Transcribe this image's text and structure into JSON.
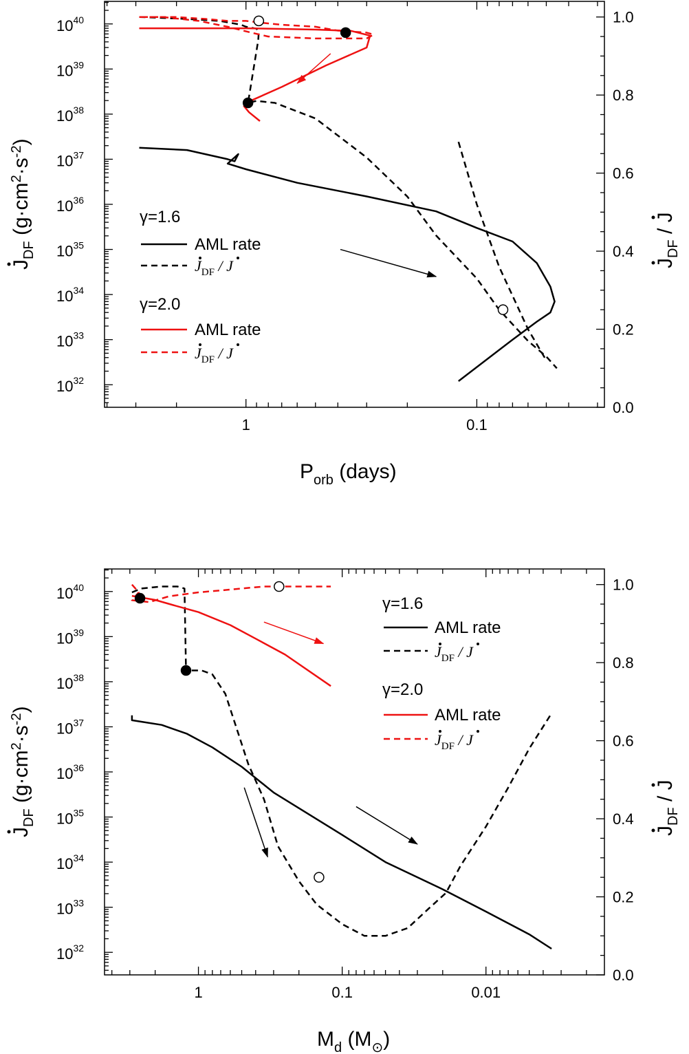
{
  "colors": {
    "gamma16": "#000000",
    "gamma20": "#ee1111"
  },
  "chart_data": [
    {
      "type": "line",
      "id": "top",
      "xlabel_main": "P",
      "xlabel_sub": "orb",
      "xlabel_tail": " (days)",
      "ylabel_left_main": "J",
      "ylabel_left_sub": "DF",
      "ylabel_left_tail": " (g·cm",
      "ylabel_right_main": "J",
      "ylabel_right_sub": "DF",
      "ylabel_right_tail": " / J",
      "x_scale": "log",
      "x_reversed": true,
      "xlim": [
        4.1,
        0.028
      ],
      "y_left_scale": "log",
      "y_left_lim": [
        3.162e+31,
        3.162e+40
      ],
      "y_right_lim": [
        0.0,
        1.04
      ],
      "x_tick_labels": [
        {
          "v": 1,
          "label": "1"
        },
        {
          "v": 0.1,
          "label": "0.1"
        }
      ],
      "y_left_tick_labels": [
        {
          "v": 1e+32,
          "base": "10",
          "exp": "32"
        },
        {
          "v": 1e+33,
          "base": "10",
          "exp": "33"
        },
        {
          "v": 1e+34,
          "base": "10",
          "exp": "34"
        },
        {
          "v": 1e+35,
          "base": "10",
          "exp": "35"
        },
        {
          "v": 1e+36,
          "base": "10",
          "exp": "36"
        },
        {
          "v": 1e+37,
          "base": "10",
          "exp": "37"
        },
        {
          "v": 1e+38,
          "base": "10",
          "exp": "38"
        },
        {
          "v": 1e+39,
          "base": "10",
          "exp": "39"
        },
        {
          "v": 1e+40,
          "base": "10",
          "exp": "40"
        }
      ],
      "y_right_tick_labels": [
        "0.0",
        "0.2",
        "0.4",
        "0.6",
        "0.8",
        "1.0"
      ],
      "legend": {
        "group1": "γ=1.6",
        "aml1": "AML rate",
        "ratio1_a": "J",
        "ratio1_sub": "DF",
        "ratio1_b": " / J",
        "group2": "γ=2.0",
        "aml2": "AML rate",
        "ratio2_a": "J",
        "ratio2_sub": "DF",
        "ratio2_b": " / J"
      },
      "series": [
        {
          "kind": "gamma16-aml",
          "axis": "left",
          "x": [
            2.9,
            1.8,
            1.2,
            1.12,
            1.08,
            1.2,
            1.0,
            0.6,
            0.3,
            0.15,
            0.1,
            0.07,
            0.055,
            0.048,
            0.046,
            0.048,
            0.055,
            0.07,
            0.12
          ],
          "y": [
            1.8e+37,
            1.6e+37,
            1e+37,
            9e+36,
            1.3e+37,
            8e+36,
            6e+36,
            3e+36,
            1.5e+36,
            7e+35,
            3e+35,
            1.5e+35,
            5e+34,
            1.5e+34,
            7e+33,
            4e+33,
            2.5e+33,
            1e+33,
            1.2e+32
          ]
        },
        {
          "kind": "gamma16-ratio",
          "axis": "right",
          "x": [
            2.9,
            1.8,
            1.3,
            1.05,
            1.0,
            0.9,
            0.88,
            0.885,
            0.98,
            0.9,
            0.75,
            0.5,
            0.3,
            0.2,
            0.15,
            0.1,
            0.08,
            0.06,
            0.05,
            0.045
          ],
          "y": [
            1.0,
            0.995,
            0.99,
            0.98,
            0.975,
            0.97,
            0.96,
            0.94,
            0.78,
            0.785,
            0.78,
            0.74,
            0.64,
            0.54,
            0.44,
            0.33,
            0.25,
            0.17,
            0.13,
            0.1
          ]
        },
        {
          "kind": "gamma16-ratio",
          "axis": "right",
          "x": [
            0.12,
            0.1,
            0.08,
            0.06,
            0.05
          ],
          "y": [
            0.68,
            0.52,
            0.36,
            0.2,
            0.12
          ]
        },
        {
          "kind": "gamma20-aml",
          "axis": "left",
          "x": [
            2.9,
            1.0,
            0.5,
            0.35,
            0.29,
            0.3,
            0.45,
            0.7,
            0.95,
            1.02,
            0.97,
            0.87
          ],
          "y": [
            8e+39,
            8e+39,
            7.5e+39,
            7e+39,
            5.5e+39,
            3e+39,
            1.2e+39,
            4e+38,
            2e+38,
            1.5e+38,
            1.1e+38,
            7e+37
          ]
        },
        {
          "kind": "gamma20-ratio",
          "axis": "right",
          "x": [
            2.9,
            2.0,
            1.5,
            1.2,
            1.0,
            0.85,
            0.7,
            0.5,
            0.4,
            0.3,
            0.28,
            0.3,
            0.5,
            0.8,
            0.95,
            1.2,
            1.6,
            2.3,
            2.9
          ],
          "y": [
            1.0,
            1.0,
            0.995,
            0.99,
            0.99,
            0.985,
            0.98,
            0.975,
            0.965,
            0.96,
            0.955,
            0.945,
            0.945,
            0.95,
            0.96,
            0.975,
            0.99,
            1.0,
            1.0
          ]
        }
      ],
      "markers": [
        {
          "fill": "open",
          "x": 0.88,
          "y": 0.99,
          "axis": "right"
        },
        {
          "fill": "solid",
          "x": 0.37,
          "y": 0.96,
          "axis": "right"
        },
        {
          "fill": "solid",
          "x": 0.98,
          "y": 0.78,
          "axis": "right"
        },
        {
          "fill": "open",
          "x": 0.077,
          "y": 0.25,
          "axis": "right"
        }
      ],
      "arrows": [
        {
          "color": "gamma20",
          "from": [
            0.43,
            2.2e+39
          ],
          "to": [
            0.6,
            4.8e+38
          ],
          "axis": "left"
        },
        {
          "color": "gamma16",
          "from": [
            0.39,
            1e+35
          ],
          "to": [
            0.15,
            2.5e+34
          ],
          "axis": "left"
        }
      ]
    },
    {
      "type": "line",
      "id": "bottom",
      "xlabel_main": "M",
      "xlabel_sub": "d",
      "xlabel_tail": " (M",
      "ylabel_left_main": "J",
      "ylabel_left_sub": "DF",
      "ylabel_left_tail": " (g·cm",
      "ylabel_right_main": "J",
      "ylabel_right_sub": "DF",
      "ylabel_right_tail": " / J",
      "x_scale": "log",
      "x_reversed": true,
      "xlim": [
        4.5,
        0.0015
      ],
      "y_left_scale": "log",
      "y_left_lim": [
        3.162e+31,
        3.162e+40
      ],
      "y_right_lim": [
        0.0,
        1.04
      ],
      "x_tick_labels": [
        {
          "v": 1,
          "label": "1"
        },
        {
          "v": 0.1,
          "label": "0.1"
        },
        {
          "v": 0.01,
          "label": "0.01"
        }
      ],
      "y_left_tick_labels": [
        {
          "v": 1e+32,
          "base": "10",
          "exp": "32"
        },
        {
          "v": 1e+33,
          "base": "10",
          "exp": "33"
        },
        {
          "v": 1e+34,
          "base": "10",
          "exp": "34"
        },
        {
          "v": 1e+35,
          "base": "10",
          "exp": "35"
        },
        {
          "v": 1e+36,
          "base": "10",
          "exp": "36"
        },
        {
          "v": 1e+37,
          "base": "10",
          "exp": "37"
        },
        {
          "v": 1e+38,
          "base": "10",
          "exp": "38"
        },
        {
          "v": 1e+39,
          "base": "10",
          "exp": "39"
        },
        {
          "v": 1e+40,
          "base": "10",
          "exp": "40"
        }
      ],
      "y_right_tick_labels": [
        "0.0",
        "0.2",
        "0.4",
        "0.6",
        "0.8",
        "1.0"
      ],
      "legend": {
        "group1": "γ=1.6",
        "aml1": "AML rate",
        "ratio1_a": "J",
        "ratio1_sub": "DF",
        "ratio1_b": " / J",
        "group2": "γ=2.0",
        "aml2": "AML rate",
        "ratio2_a": "J",
        "ratio2_sub": "DF",
        "ratio2_b": " / J"
      },
      "series": [
        {
          "kind": "gamma16-aml",
          "axis": "left",
          "x": [
            2.9,
            2.9,
            2.5,
            1.8,
            1.2,
            0.8,
            0.5,
            0.3,
            0.1,
            0.05,
            0.02,
            0.01,
            0.005,
            0.0035
          ],
          "y": [
            1.8e+37,
            1.4e+37,
            1.3e+37,
            1.1e+37,
            7e+36,
            3.5e+36,
            1.3e+36,
            3.5e+35,
            4e+34,
            1e+34,
            2.5e+33,
            8e+32,
            2.5e+32,
            1.2e+32
          ]
        },
        {
          "kind": "gamma16-ratio",
          "axis": "right",
          "x": [
            2.9,
            2.5,
            1.8,
            1.4,
            1.25,
            1.22,
            1.25,
            0.95,
            0.8,
            0.65,
            0.45,
            0.35,
            0.28,
            0.2,
            0.15,
            0.1,
            0.07,
            0.05,
            0.035,
            0.025,
            0.019,
            0.015,
            0.01,
            0.007,
            0.005,
            0.0035
          ],
          "y": [
            0.98,
            0.99,
            0.995,
            0.995,
            0.99,
            0.78,
            0.78,
            0.78,
            0.77,
            0.72,
            0.54,
            0.45,
            0.33,
            0.24,
            0.18,
            0.13,
            0.1,
            0.1,
            0.12,
            0.17,
            0.21,
            0.28,
            0.38,
            0.48,
            0.58,
            0.67
          ]
        },
        {
          "kind": "gamma20-aml",
          "axis": "left",
          "x": [
            2.9,
            2,
            1.5,
            1,
            0.6,
            0.4,
            0.25,
            0.12
          ],
          "y": [
            8e+39,
            6.5e+39,
            5e+39,
            3.5e+39,
            1.8e+39,
            9e+38,
            4e+38,
            8e+37
          ]
        },
        {
          "kind": "gamma20-ratio",
          "axis": "right",
          "x": [
            2.9,
            2.6,
            2.9,
            2.2,
            1.6,
            1.0,
            0.7,
            0.5,
            0.35,
            0.25,
            0.18,
            0.12
          ],
          "y": [
            1.0,
            0.98,
            0.96,
            0.955,
            0.97,
            0.98,
            0.985,
            0.99,
            0.995,
            0.995,
            0.995,
            0.995
          ]
        }
      ],
      "markers": [
        {
          "fill": "solid",
          "x": 2.55,
          "y": 0.965,
          "axis": "right"
        },
        {
          "fill": "open",
          "x": 0.275,
          "y": 0.995,
          "axis": "right"
        },
        {
          "fill": "solid",
          "x": 1.22,
          "y": 0.78,
          "axis": "right"
        },
        {
          "fill": "open",
          "x": 0.145,
          "y": 0.25,
          "axis": "right"
        }
      ],
      "arrows": [
        {
          "color": "gamma20",
          "from": [
            0.35,
            2.1e+39
          ],
          "to": [
            0.135,
            7e+38
          ],
          "axis": "left"
        },
        {
          "color": "gamma16",
          "from": [
            0.48,
            4.5e+35
          ],
          "to": [
            0.33,
            1.3e+34
          ],
          "axis": "left"
        },
        {
          "color": "gamma16",
          "from": [
            0.08,
            1.7e+35
          ],
          "to": [
            0.03,
            2.5e+34
          ],
          "axis": "left"
        }
      ]
    }
  ]
}
